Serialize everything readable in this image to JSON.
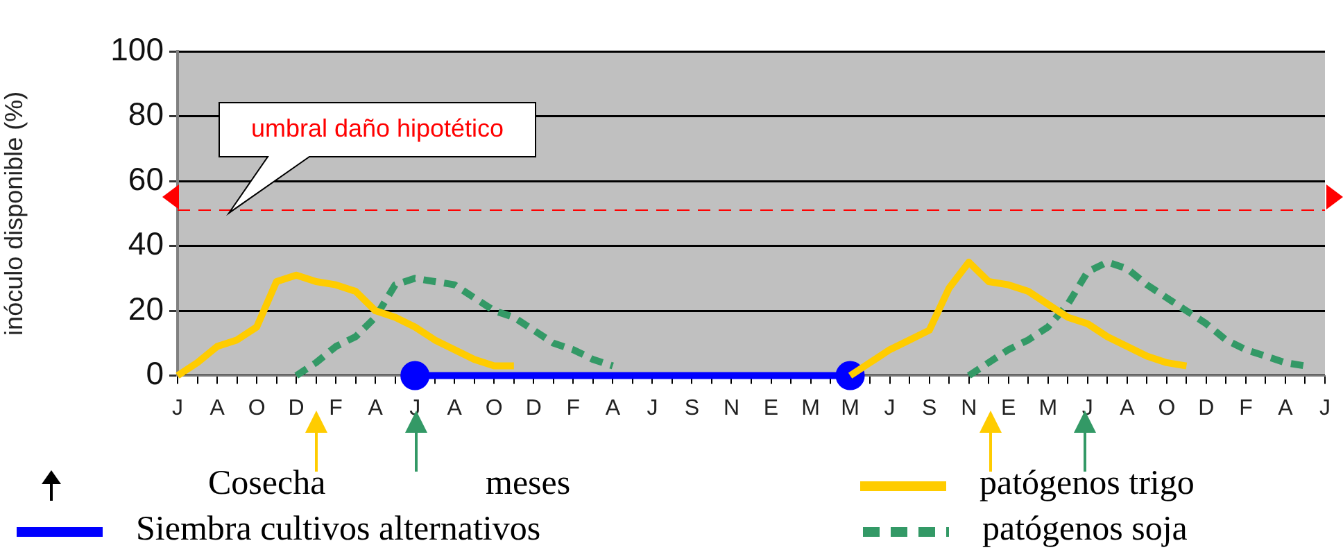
{
  "chart_data": {
    "type": "line",
    "ylabel": "inóculo disponible (%)",
    "xlabel": "meses",
    "categories": [
      "J",
      null,
      "A",
      null,
      "O",
      null,
      "D",
      null,
      "F",
      null,
      "A",
      null,
      "J",
      null,
      "A",
      null,
      "O",
      null,
      "D",
      null,
      "F",
      null,
      "A",
      null,
      "J",
      null,
      "S",
      null,
      "N",
      null,
      "E",
      null,
      "M",
      null,
      "M",
      null,
      "J",
      null,
      "S",
      null,
      "N",
      null,
      "E",
      null,
      "M",
      null,
      "J",
      null,
      "A",
      null,
      "O",
      null,
      "D",
      null,
      "F",
      null,
      "A",
      null,
      "J"
    ],
    "series": [
      {
        "name": "patógenos trigo",
        "color": "#ffcc00",
        "line_style": "solid",
        "values": [
          0,
          4,
          9,
          11,
          15,
          29,
          31,
          29,
          28,
          26,
          20,
          18,
          15,
          11,
          8,
          5,
          3,
          3,
          null,
          null,
          null,
          null,
          null,
          null,
          null,
          null,
          null,
          null,
          null,
          null,
          null,
          null,
          null,
          null,
          0,
          4,
          8,
          11,
          14,
          27,
          35,
          29,
          28,
          26,
          22,
          18,
          16,
          12,
          9,
          6,
          4,
          3,
          null,
          null,
          null,
          null,
          null,
          null,
          null
        ]
      },
      {
        "name": "patógenos soja",
        "color": "#339966",
        "line_style": "dashed",
        "values": [
          null,
          null,
          null,
          null,
          null,
          null,
          0,
          4,
          9,
          12,
          18,
          28,
          30,
          29,
          28,
          24,
          20,
          18,
          14,
          10,
          8,
          5,
          3,
          null,
          null,
          null,
          null,
          null,
          null,
          null,
          null,
          null,
          null,
          null,
          null,
          null,
          null,
          null,
          null,
          null,
          0,
          4,
          8,
          11,
          15,
          22,
          32,
          35,
          33,
          28,
          24,
          20,
          16,
          11,
          8,
          6,
          4,
          3,
          null
        ]
      },
      {
        "name": "Siembra cultivos alternativos",
        "color": "#0000ff",
        "line_style": "solid",
        "marker": "circle",
        "values": [
          null,
          null,
          null,
          null,
          null,
          null,
          null,
          null,
          null,
          null,
          null,
          null,
          0,
          null,
          null,
          null,
          null,
          null,
          null,
          null,
          null,
          null,
          null,
          null,
          null,
          null,
          null,
          null,
          null,
          null,
          null,
          null,
          null,
          null,
          0,
          null,
          null,
          null,
          null,
          null,
          null,
          null,
          null,
          null,
          null,
          null,
          null,
          null,
          null,
          null,
          null,
          null,
          null,
          null,
          null,
          null,
          null,
          null,
          null
        ]
      }
    ],
    "ylim": [
      0,
      100
    ],
    "yticks": [
      0,
      20,
      40,
      60,
      80,
      100
    ],
    "grid": "y",
    "legend": "bottom",
    "ref_lines": [
      {
        "axis": "y",
        "value": 51,
        "label": "umbral daño hipotético",
        "color": "#ff0000",
        "line_style": "dashed"
      }
    ],
    "annotations": [
      "Cosecha"
    ]
  }
}
